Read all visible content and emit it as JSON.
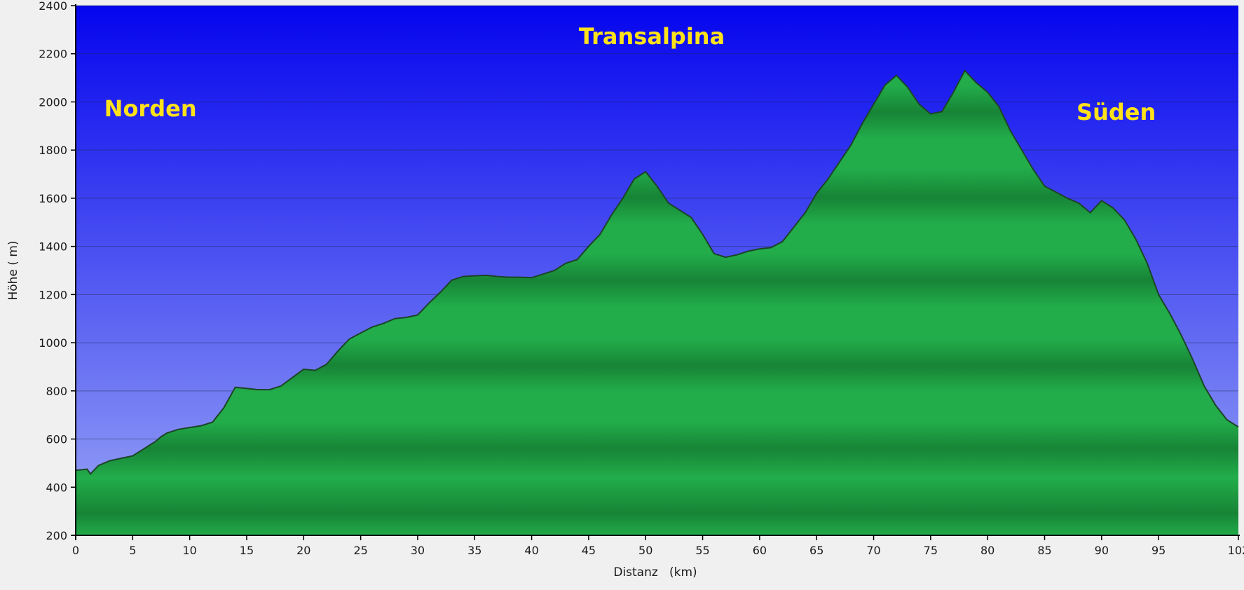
{
  "chart_data": {
    "type": "area",
    "title": "Transalpina",
    "xlabel": "Distanz   (km)",
    "ylabel": "Höhe ( m)",
    "xlim": [
      0,
      102
    ],
    "ylim": [
      200,
      2400
    ],
    "x_ticks": [
      0,
      5,
      10,
      15,
      20,
      25,
      30,
      35,
      40,
      45,
      50,
      55,
      60,
      65,
      70,
      75,
      80,
      85,
      90,
      95,
      102
    ],
    "y_ticks": [
      200,
      400,
      600,
      800,
      1000,
      1200,
      1400,
      1600,
      1800,
      2000,
      2200,
      2400
    ],
    "grid": true,
    "annotations": [
      {
        "text": "Norden",
        "x": 2.5,
        "y": 1940
      },
      {
        "text": "Süden",
        "x": 87.8,
        "y": 1925
      }
    ],
    "series": [
      {
        "x": [
          0,
          1,
          1.3,
          2,
          3,
          4,
          5,
          6,
          7,
          7.5,
          8,
          9,
          10,
          11,
          12,
          13,
          14,
          15,
          16,
          17,
          18,
          19,
          20,
          21,
          22,
          23,
          24,
          25,
          26,
          27,
          28,
          29,
          30,
          31,
          32,
          33,
          34,
          35,
          36,
          37,
          38,
          39,
          40,
          41,
          42,
          43,
          44,
          45,
          46,
          47,
          48,
          49,
          50,
          51,
          52,
          53,
          54,
          55,
          56,
          57,
          58,
          59,
          60,
          61,
          62,
          63,
          64,
          65,
          66,
          67,
          68,
          69,
          70,
          71,
          72,
          73,
          74,
          75,
          76,
          77,
          78,
          79,
          80,
          81,
          82,
          83,
          84,
          85,
          86,
          87,
          88,
          89,
          90,
          91,
          92,
          93,
          94,
          95,
          96,
          97,
          98,
          99,
          100,
          101,
          102
        ],
        "y": [
          470,
          475,
          455,
          490,
          510,
          520,
          530,
          560,
          590,
          610,
          625,
          640,
          648,
          655,
          670,
          730,
          815,
          810,
          805,
          805,
          820,
          855,
          890,
          885,
          910,
          965,
          1015,
          1040,
          1065,
          1080,
          1100,
          1105,
          1115,
          1165,
          1210,
          1260,
          1275,
          1278,
          1280,
          1275,
          1272,
          1272,
          1270,
          1285,
          1300,
          1330,
          1345,
          1400,
          1450,
          1530,
          1600,
          1680,
          1710,
          1650,
          1580,
          1550,
          1520,
          1450,
          1370,
          1355,
          1365,
          1380,
          1390,
          1395,
          1420,
          1480,
          1540,
          1620,
          1680,
          1750,
          1820,
          1910,
          1990,
          2070,
          2110,
          2060,
          1990,
          1950,
          1960,
          2040,
          2130,
          2080,
          2040,
          1980,
          1880,
          1800,
          1720,
          1650,
          1625,
          1600,
          1580,
          1540,
          1590,
          1560,
          1510,
          1430,
          1330,
          1200,
          1120,
          1030,
          930,
          820,
          740,
          680,
          650
        ]
      }
    ],
    "colors": {
      "sky_top": "#0505ee",
      "sky_bottom": "#9aa6f5",
      "fill_light": "#22ad4a",
      "fill_dark": "#178436",
      "outline": "#1c4426",
      "annotation": "#ffe21a"
    }
  }
}
